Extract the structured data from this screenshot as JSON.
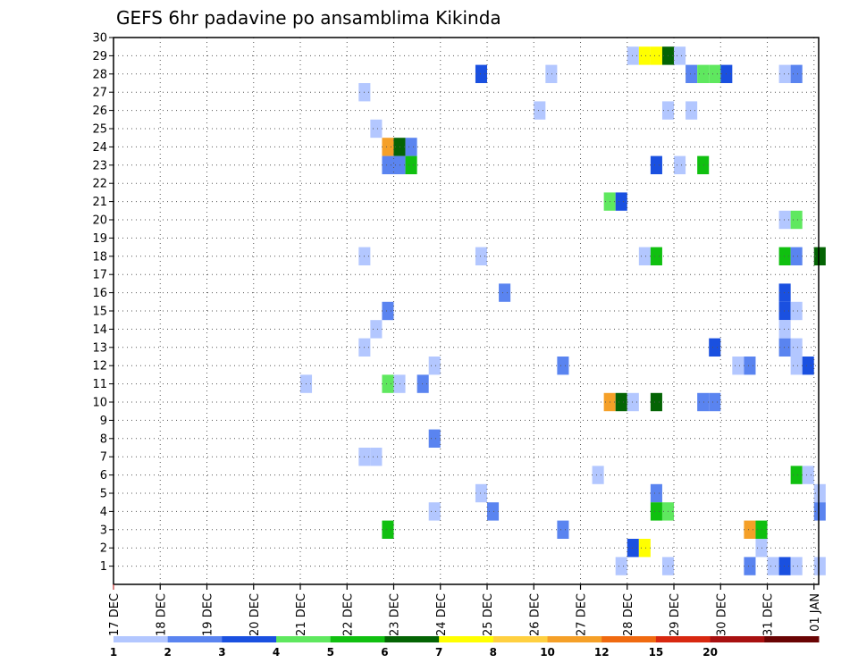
{
  "chart_data": {
    "type": "heatmap",
    "title": "GEFS 6hr padavine po ansamblima Kikinda",
    "xlabel": "",
    "ylabel": "",
    "x_ticks": [
      "17 DEC",
      "18 DEC",
      "19 DEC",
      "20 DEC",
      "21 DEC",
      "22 DEC",
      "23 DEC",
      "24 DEC",
      "25 DEC",
      "26 DEC",
      "27 DEC",
      "28 DEC",
      "29 DEC",
      "30 DEC",
      "31 DEC",
      "01 JAN"
    ],
    "y_ticks": [
      "1",
      "2",
      "3",
      "4",
      "5",
      "6",
      "7",
      "8",
      "9",
      "10",
      "11",
      "12",
      "13",
      "14",
      "15",
      "16",
      "17",
      "18",
      "19",
      "20",
      "21",
      "22",
      "23",
      "24",
      "25",
      "26",
      "27",
      "28",
      "29",
      "30"
    ],
    "x_range_days": [
      0,
      15.1
    ],
    "y_range": [
      0,
      30
    ],
    "grid": true,
    "colorbar": {
      "labels": [
        "1",
        "2",
        "3",
        "4",
        "5",
        "6",
        "7",
        "8",
        "10",
        "12",
        "15",
        "20"
      ],
      "colors": [
        "#b3c7ff",
        "#5a84f0",
        "#1a50e0",
        "#5fe85f",
        "#10c010",
        "#046404",
        "#ffff00",
        "#ffd040",
        "#f5a028",
        "#f06a10",
        "#d82810",
        "#a81010",
        "#6a0404"
      ]
    },
    "cells": [
      {
        "d": 4.0,
        "m": 11,
        "v": 1.5
      },
      {
        "d": 5.25,
        "m": 27,
        "v": 1.5
      },
      {
        "d": 5.5,
        "m": 25,
        "v": 1.5
      },
      {
        "d": 5.25,
        "m": 18,
        "v": 1.5
      },
      {
        "d": 5.5,
        "m": 14,
        "v": 1.5
      },
      {
        "d": 5.25,
        "m": 13,
        "v": 1.5
      },
      {
        "d": 5.25,
        "m": 7,
        "v": 1.5
      },
      {
        "d": 5.5,
        "m": 7,
        "v": 1.5
      },
      {
        "d": 5.75,
        "m": 24,
        "v": 10
      },
      {
        "d": 6.0,
        "m": 24,
        "v": 6.5
      },
      {
        "d": 6.25,
        "m": 24,
        "v": 2.5
      },
      {
        "d": 5.75,
        "m": 23,
        "v": 2.5
      },
      {
        "d": 6.0,
        "m": 23,
        "v": 2.5
      },
      {
        "d": 6.25,
        "m": 23,
        "v": 5.5
      },
      {
        "d": 5.75,
        "m": 15,
        "v": 2.5
      },
      {
        "d": 5.75,
        "m": 11,
        "v": 4.5
      },
      {
        "d": 6.0,
        "m": 11,
        "v": 1.5
      },
      {
        "d": 6.5,
        "m": 11,
        "v": 2.5
      },
      {
        "d": 5.75,
        "m": 3,
        "v": 5.5
      },
      {
        "d": 6.75,
        "m": 12,
        "v": 1.5
      },
      {
        "d": 6.75,
        "m": 8,
        "v": 2.5
      },
      {
        "d": 6.75,
        "m": 4,
        "v": 1.5
      },
      {
        "d": 7.75,
        "m": 28,
        "v": 3.5
      },
      {
        "d": 7.75,
        "m": 18,
        "v": 1.5
      },
      {
        "d": 7.75,
        "m": 5,
        "v": 1.5
      },
      {
        "d": 8.0,
        "m": 4,
        "v": 2.5
      },
      {
        "d": 8.25,
        "m": 16,
        "v": 2.5
      },
      {
        "d": 9.0,
        "m": 26,
        "v": 1.5
      },
      {
        "d": 9.25,
        "m": 28,
        "v": 1.5
      },
      {
        "d": 9.5,
        "m": 12,
        "v": 2.5
      },
      {
        "d": 9.5,
        "m": 3,
        "v": 2.5
      },
      {
        "d": 10.25,
        "m": 6,
        "v": 1.5
      },
      {
        "d": 10.5,
        "m": 21,
        "v": 4.5
      },
      {
        "d": 10.75,
        "m": 21,
        "v": 3.5
      },
      {
        "d": 10.5,
        "m": 10,
        "v": 10
      },
      {
        "d": 10.75,
        "m": 10,
        "v": 6.5
      },
      {
        "d": 11.0,
        "m": 10,
        "v": 1.5
      },
      {
        "d": 10.75,
        "m": 1,
        "v": 1.5
      },
      {
        "d": 11.0,
        "m": 29,
        "v": 1.5
      },
      {
        "d": 11.25,
        "m": 29,
        "v": 7.5
      },
      {
        "d": 11.5,
        "m": 29,
        "v": 7.5
      },
      {
        "d": 11.75,
        "m": 29,
        "v": 6.5
      },
      {
        "d": 12.0,
        "m": 29,
        "v": 1.5
      },
      {
        "d": 11.0,
        "m": 2,
        "v": 3.5
      },
      {
        "d": 11.25,
        "m": 2,
        "v": 7.5
      },
      {
        "d": 11.25,
        "m": 18,
        "v": 1.5
      },
      {
        "d": 11.5,
        "m": 18,
        "v": 5.5
      },
      {
        "d": 11.5,
        "m": 23,
        "v": 3.5
      },
      {
        "d": 11.5,
        "m": 10,
        "v": 6.5
      },
      {
        "d": 11.5,
        "m": 5,
        "v": 2.5
      },
      {
        "d": 11.5,
        "m": 4,
        "v": 5.5
      },
      {
        "d": 11.75,
        "m": 4,
        "v": 4.5
      },
      {
        "d": 11.75,
        "m": 26,
        "v": 1.5
      },
      {
        "d": 11.75,
        "m": 1,
        "v": 1.5
      },
      {
        "d": 12.0,
        "m": 23,
        "v": 1.5
      },
      {
        "d": 12.25,
        "m": 28,
        "v": 2.5
      },
      {
        "d": 12.5,
        "m": 28,
        "v": 4.5
      },
      {
        "d": 12.75,
        "m": 28,
        "v": 4.5
      },
      {
        "d": 13.0,
        "m": 28,
        "v": 3.5
      },
      {
        "d": 12.25,
        "m": 26,
        "v": 1.5
      },
      {
        "d": 12.5,
        "m": 23,
        "v": 5.5
      },
      {
        "d": 12.5,
        "m": 10,
        "v": 2.5
      },
      {
        "d": 12.75,
        "m": 10,
        "v": 2.5
      },
      {
        "d": 12.75,
        "m": 13,
        "v": 3.5
      },
      {
        "d": 13.25,
        "m": 12,
        "v": 1.5
      },
      {
        "d": 13.5,
        "m": 12,
        "v": 2.5
      },
      {
        "d": 13.5,
        "m": 3,
        "v": 10
      },
      {
        "d": 13.75,
        "m": 3,
        "v": 5.5
      },
      {
        "d": 13.5,
        "m": 1,
        "v": 2.5
      },
      {
        "d": 13.75,
        "m": 2,
        "v": 1.5
      },
      {
        "d": 14.0,
        "m": 1,
        "v": 1.5
      },
      {
        "d": 14.25,
        "m": 1,
        "v": 3.5
      },
      {
        "d": 14.5,
        "m": 1,
        "v": 1.5
      },
      {
        "d": 14.25,
        "m": 28,
        "v": 1.5
      },
      {
        "d": 14.5,
        "m": 28,
        "v": 2.5
      },
      {
        "d": 14.25,
        "m": 20,
        "v": 1.5
      },
      {
        "d": 14.5,
        "m": 20,
        "v": 4.5
      },
      {
        "d": 14.25,
        "m": 18,
        "v": 5.5
      },
      {
        "d": 14.5,
        "m": 18,
        "v": 2.5
      },
      {
        "d": 14.25,
        "m": 16,
        "v": 3.5
      },
      {
        "d": 14.25,
        "m": 15,
        "v": 3.5
      },
      {
        "d": 14.5,
        "m": 15,
        "v": 1.5
      },
      {
        "d": 14.25,
        "m": 13,
        "v": 2.5
      },
      {
        "d": 14.5,
        "m": 13,
        "v": 1.5
      },
      {
        "d": 14.25,
        "m": 14,
        "v": 1.5
      },
      {
        "d": 14.5,
        "m": 12,
        "v": 1.5
      },
      {
        "d": 14.75,
        "m": 12,
        "v": 3.5
      },
      {
        "d": 14.5,
        "m": 6,
        "v": 5.5
      },
      {
        "d": 14.75,
        "m": 6,
        "v": 1.5
      },
      {
        "d": 15.0,
        "m": 18,
        "v": 6.5
      },
      {
        "d": 15.0,
        "m": 5,
        "v": 1.5
      },
      {
        "d": 15.0,
        "m": 4,
        "v": 2.5
      },
      {
        "d": 15.0,
        "m": 1,
        "v": 1.5
      }
    ]
  }
}
